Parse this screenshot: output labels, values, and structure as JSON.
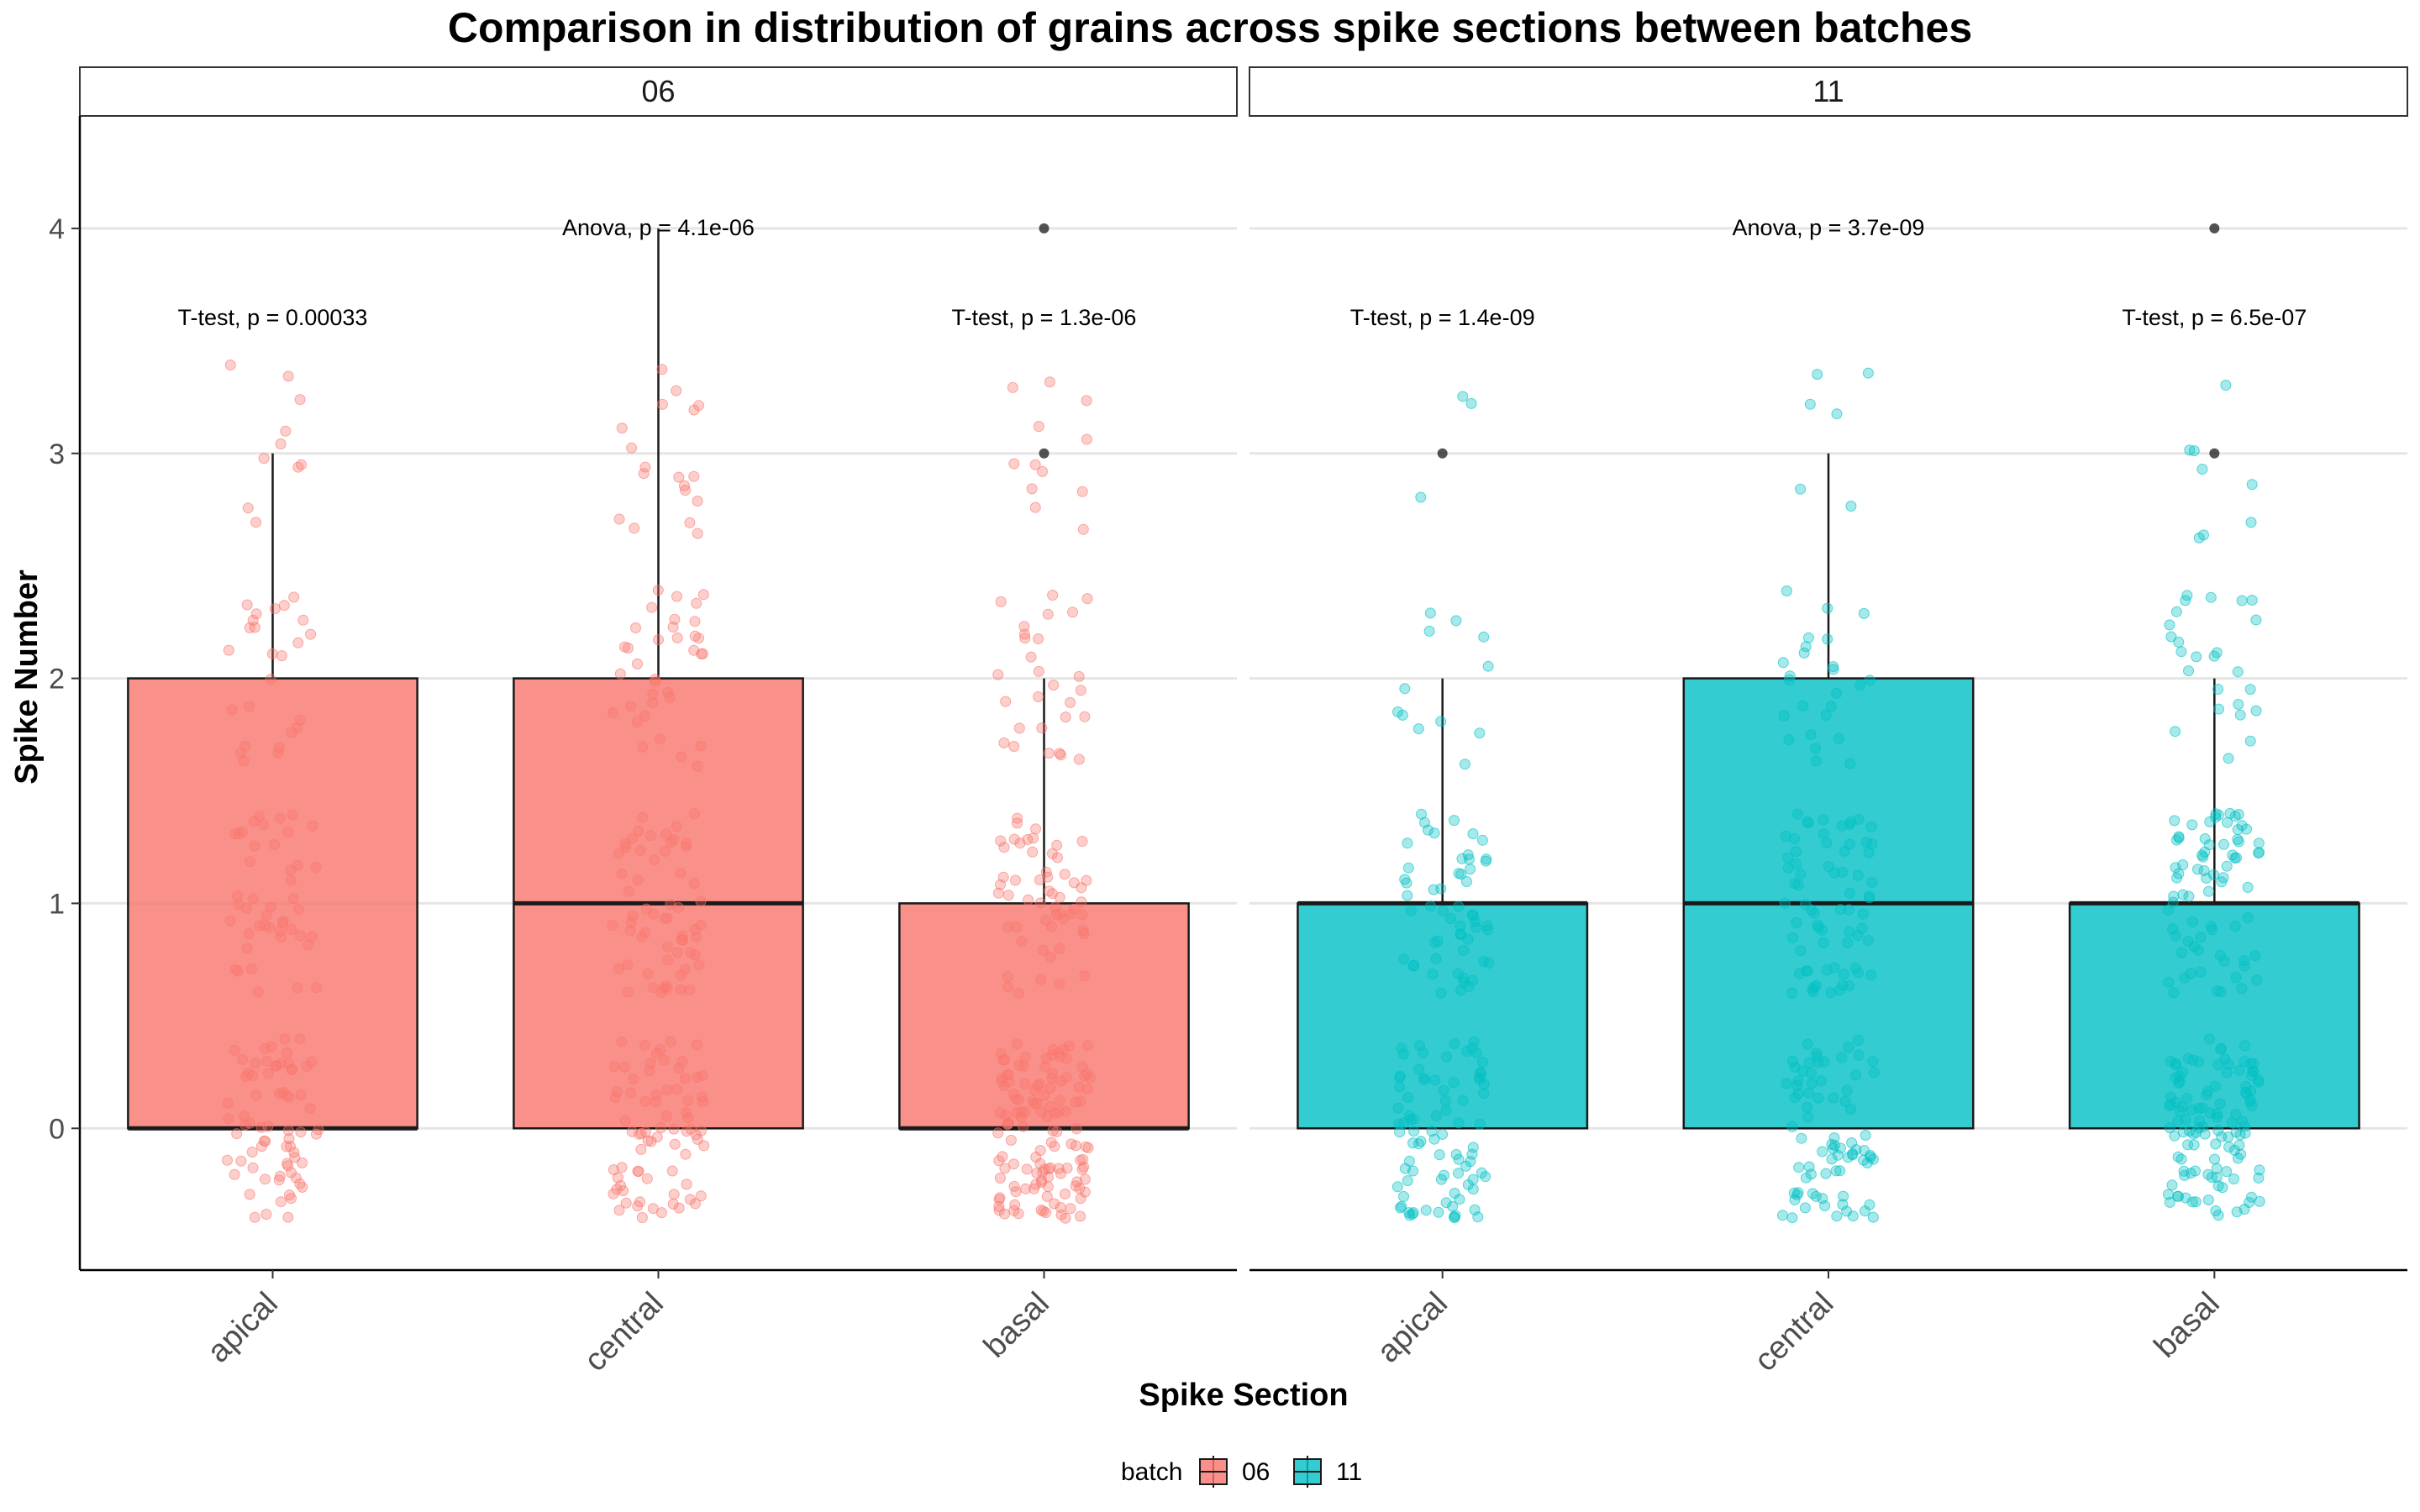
{
  "chart_data": {
    "type": "box",
    "title": "Comparison in distribution of grains across spike sections between batches",
    "xlabel": "Spike Section",
    "ylabel": "Spike Number",
    "ylim": [
      -0.63,
      4.5
    ],
    "yticks": [
      0,
      1,
      2,
      3,
      4
    ],
    "categories": [
      "apical",
      "central",
      "basal"
    ],
    "facets": [
      {
        "label": "06",
        "color": "#f8766d",
        "boxes": [
          {
            "category": "apical",
            "q1": 0,
            "median": 0,
            "q3": 2,
            "whisker_low": 0,
            "whisker_high": 3,
            "outliers": []
          },
          {
            "category": "central",
            "q1": 0,
            "median": 1,
            "q3": 2,
            "whisker_low": 0,
            "whisker_high": 4,
            "outliers": []
          },
          {
            "category": "basal",
            "q1": 0,
            "median": 0,
            "q3": 1,
            "whisker_low": 0,
            "whisker_high": 2,
            "outliers": [
              3,
              4
            ]
          }
        ],
        "annotations": [
          {
            "text": "T-test, p = 0.00033",
            "category": "apical",
            "y": 3.6
          },
          {
            "text": "Anova, p = 4.1e-06",
            "category": "central",
            "y": 4.0
          },
          {
            "text": "T-test, p = 1.3e-06",
            "category": "basal",
            "y": 3.6
          }
        ]
      },
      {
        "label": "11",
        "color": "#00bfc4",
        "boxes": [
          {
            "category": "apical",
            "q1": 0,
            "median": 1,
            "q3": 1,
            "whisker_low": 0,
            "whisker_high": 2,
            "outliers": [
              3
            ]
          },
          {
            "category": "central",
            "q1": 0,
            "median": 1,
            "q3": 2,
            "whisker_low": 0,
            "whisker_high": 3,
            "outliers": []
          },
          {
            "category": "basal",
            "q1": 0,
            "median": 1,
            "q3": 1,
            "whisker_low": 0,
            "whisker_high": 2,
            "outliers": [
              3,
              4
            ]
          }
        ],
        "annotations": [
          {
            "text": "T-test, p = 1.4e-09",
            "category": "apical",
            "y": 3.6
          },
          {
            "text": "Anova, p = 3.7e-09",
            "category": "central",
            "y": 4.0
          },
          {
            "text": "T-test, p = 6.5e-07",
            "category": "basal",
            "y": 3.6
          }
        ]
      }
    ],
    "jitter_counts": [
      {
        "apical": [
          70,
          45,
          25,
          10
        ],
        "central": [
          75,
          60,
          35,
          18
        ],
        "basal": [
          130,
          55,
          28,
          12
        ]
      },
      {
        "apical": [
          85,
          55,
          12,
          3
        ],
        "central": [
          80,
          70,
          25,
          6
        ],
        "basal": [
          115,
          75,
          25,
          8
        ]
      }
    ],
    "legend": {
      "title": "batch",
      "entries": [
        "06",
        "11"
      ]
    }
  }
}
